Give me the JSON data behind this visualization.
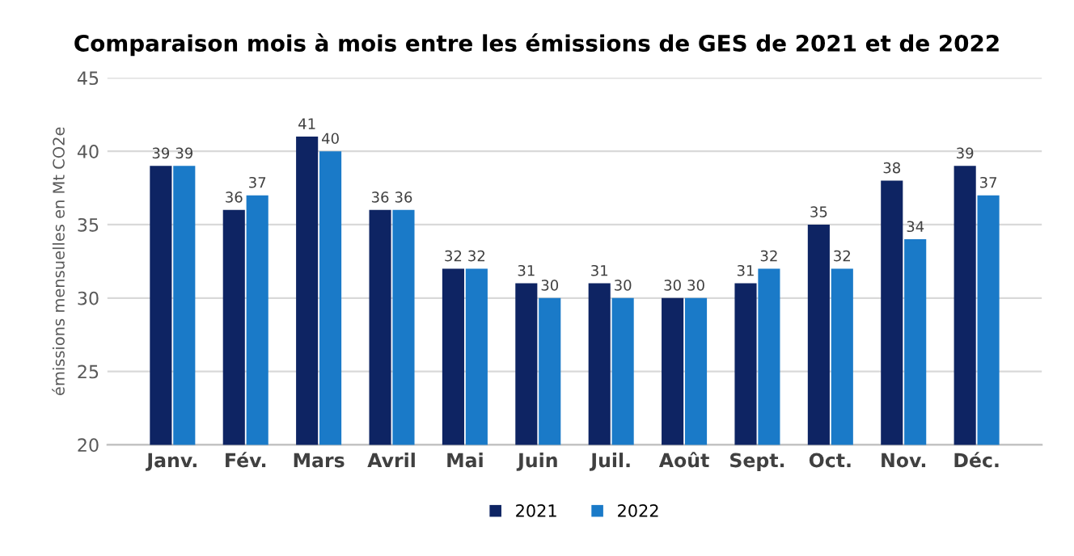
{
  "chart_data": {
    "type": "bar",
    "title": "Comparaison mois à mois entre les émissions de GES de 2021 et de 2022",
    "ylabel": "émissions mensuelles en Mt CO2e",
    "categories": [
      "Janv.",
      "Fév.",
      "Mars",
      "Avril",
      "Mai",
      "Juin",
      "Juil.",
      "Août",
      "Sept.",
      "Oct.",
      "Nov.",
      "Déc."
    ],
    "series": [
      {
        "name": "2021",
        "color": "#0e2463",
        "values": [
          39,
          36,
          41,
          36,
          32,
          31,
          31,
          30,
          31,
          35,
          38,
          39
        ]
      },
      {
        "name": "2022",
        "color": "#1a7ac8",
        "values": [
          39,
          37,
          40,
          36,
          32,
          30,
          30,
          30,
          32,
          32,
          34,
          37
        ]
      }
    ],
    "ylim": [
      20,
      45
    ],
    "yticks": [
      20,
      25,
      30,
      35,
      40,
      45
    ],
    "grid": "y",
    "legend": "bottom",
    "data_labels": true
  }
}
